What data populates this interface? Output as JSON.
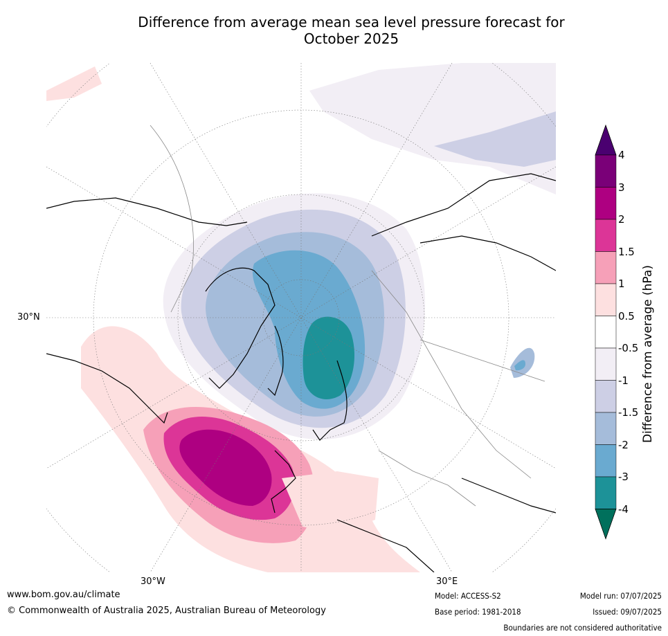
{
  "title_line1": "Difference from average mean sea level pressure forecast for",
  "title_line2": "October 2025",
  "map_labels": {
    "lat30n": "30°N",
    "lon30w": "30°W",
    "lon30e": "30°E"
  },
  "legend": {
    "title": "Difference from average (hPa)",
    "ticks": [
      "4",
      "3",
      "2",
      "1.5",
      "1",
      "0.5",
      "-0.5",
      "-1",
      "-1.5",
      "-2",
      "-3",
      "-4"
    ],
    "colors": [
      "#4a0070",
      "#7a0078",
      "#ae0081",
      "#dc3597",
      "#f6a0b8",
      "#fde0e0",
      "#ffffff",
      "#f2eef5",
      "#cdcfe5",
      "#a5bcda",
      "#6aaad0",
      "#1d9298",
      "#00705c"
    ]
  },
  "footer": {
    "website": "www.bom.gov.au/climate",
    "copyright": "© Commonwealth of Australia 2025, Australian Bureau of Meteorology",
    "model": "Model: ACCESS-S2",
    "base_period": "Base period: 1981-2018",
    "model_run": "Model run: 07/07/2025",
    "issued": "Issued: 09/07/2025",
    "disclaimer": "Boundaries are not considered authoritative"
  }
}
